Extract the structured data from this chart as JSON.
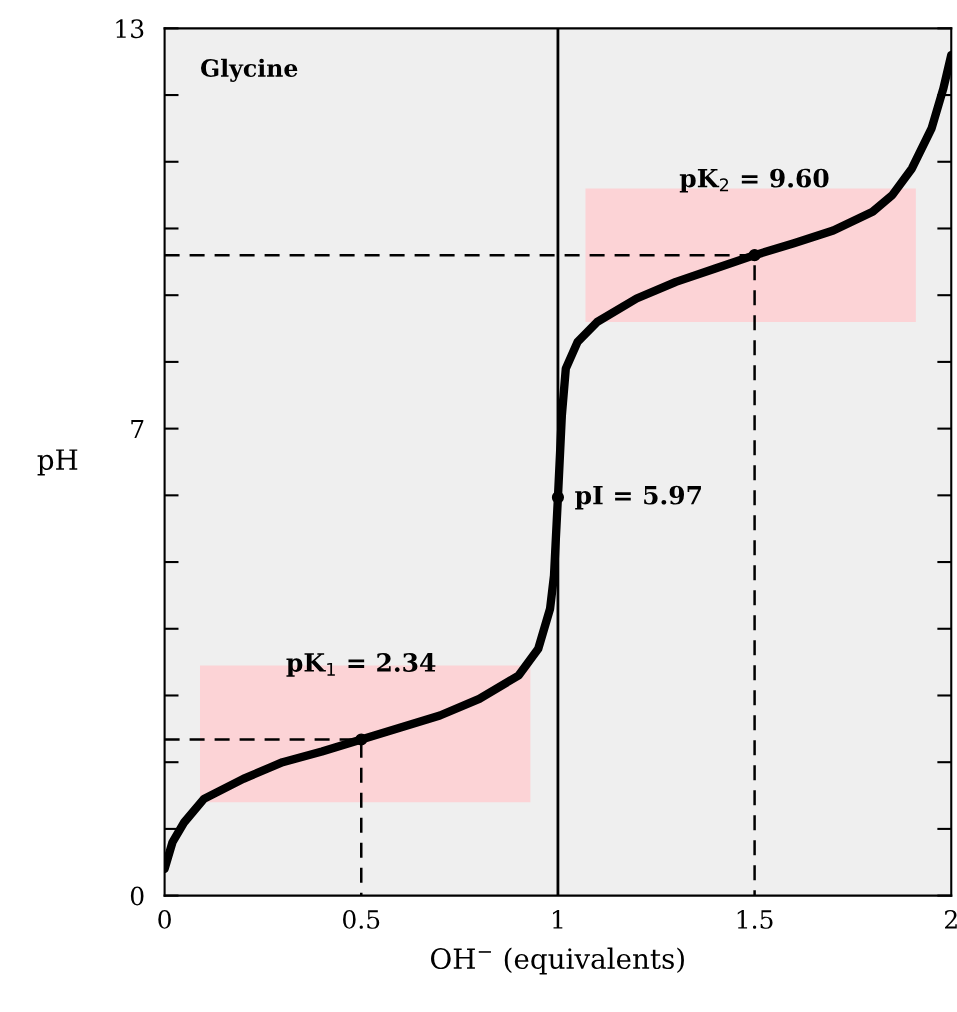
{
  "chart_data": {
    "type": "line",
    "xlabel": "OH$^{−}$ (equivalents)",
    "ylabel": "pH",
    "xlim": [
      0,
      2
    ],
    "xticks": [
      0,
      0.5,
      1,
      1.5,
      2
    ],
    "ylim": [
      0,
      13
    ],
    "yticks": [
      0,
      {
        "value": 1,
        "label": null
      },
      {
        "value": 2,
        "label": null
      },
      {
        "value": 3,
        "label": null
      },
      {
        "value": 4,
        "label": null
      },
      {
        "value": 5,
        "label": null
      },
      {
        "value": 6,
        "label": null
      },
      7,
      {
        "value": 8,
        "label": null
      },
      {
        "value": 9,
        "label": null
      },
      {
        "value": 10,
        "label": null
      },
      {
        "value": 11,
        "label": null
      },
      {
        "value": 12,
        "label": null
      },
      13
    ],
    "grid": false,
    "series": [
      {
        "type": "area",
        "color": "#fcd3d6",
        "x": [
          0.09,
          0.93,
          0.93,
          0.09
        ],
        "values": [
          1.4,
          1.4,
          3.45,
          3.45
        ]
      },
      {
        "type": "area",
        "color": "#fcd3d6",
        "x": [
          1.07,
          1.91,
          1.91,
          1.07
        ],
        "values": [
          8.6,
          8.6,
          10.6,
          10.6
        ]
      },
      {
        "type": "line",
        "color": "#000000",
        "line_style": "dashed",
        "x": [
          0,
          0.5,
          0.5
        ],
        "values": [
          2.34,
          2.34,
          0
        ]
      },
      {
        "type": "line",
        "color": "#000000",
        "line_style": "dashed",
        "x": [
          0,
          1.5,
          1.5
        ],
        "values": [
          9.6,
          9.6,
          0
        ]
      },
      {
        "color": "#000000",
        "line_style": "solid",
        "x": [
          0,
          0.02,
          0.05,
          0.1,
          0.2,
          0.3,
          0.4,
          0.5,
          0.6,
          0.7,
          0.8,
          0.9,
          0.95,
          0.98,
          0.99,
          1.0,
          1.01,
          1.02,
          1.05,
          1.1,
          1.2,
          1.3,
          1.4,
          1.5,
          1.6,
          1.7,
          1.8,
          1.85,
          1.9,
          1.95,
          1.98,
          2.0
        ],
        "values": [
          0.4,
          0.8,
          1.1,
          1.45,
          1.75,
          2.0,
          2.16,
          2.34,
          2.52,
          2.7,
          2.95,
          3.3,
          3.7,
          4.3,
          4.8,
          5.97,
          7.2,
          7.9,
          8.3,
          8.6,
          8.95,
          9.2,
          9.4,
          9.6,
          9.78,
          9.97,
          10.25,
          10.5,
          10.9,
          11.5,
          12.1,
          12.6
        ]
      },
      {
        "type": "scatter",
        "color": "#000000",
        "marker": "circle",
        "x": [
          0.5,
          1,
          1.5
        ],
        "values": [
          2.34,
          5.97,
          9.6
        ]
      }
    ],
    "ref_lines": [
      {
        "axis": "x",
        "value": 1,
        "color": "#000000",
        "line_style": "solid"
      }
    ],
    "annotations": [
      "Glycine",
      {
        "text": "pK$_{1}$ = 2.34",
        "x": 0.5,
        "y": 2.34
      },
      {
        "text": "pK$_{2}$ = 9.60",
        "x": 1.5,
        "y": 9.6
      },
      {
        "text": "pI = 5.97",
        "x": 1,
        "y": 5.97
      }
    ]
  }
}
